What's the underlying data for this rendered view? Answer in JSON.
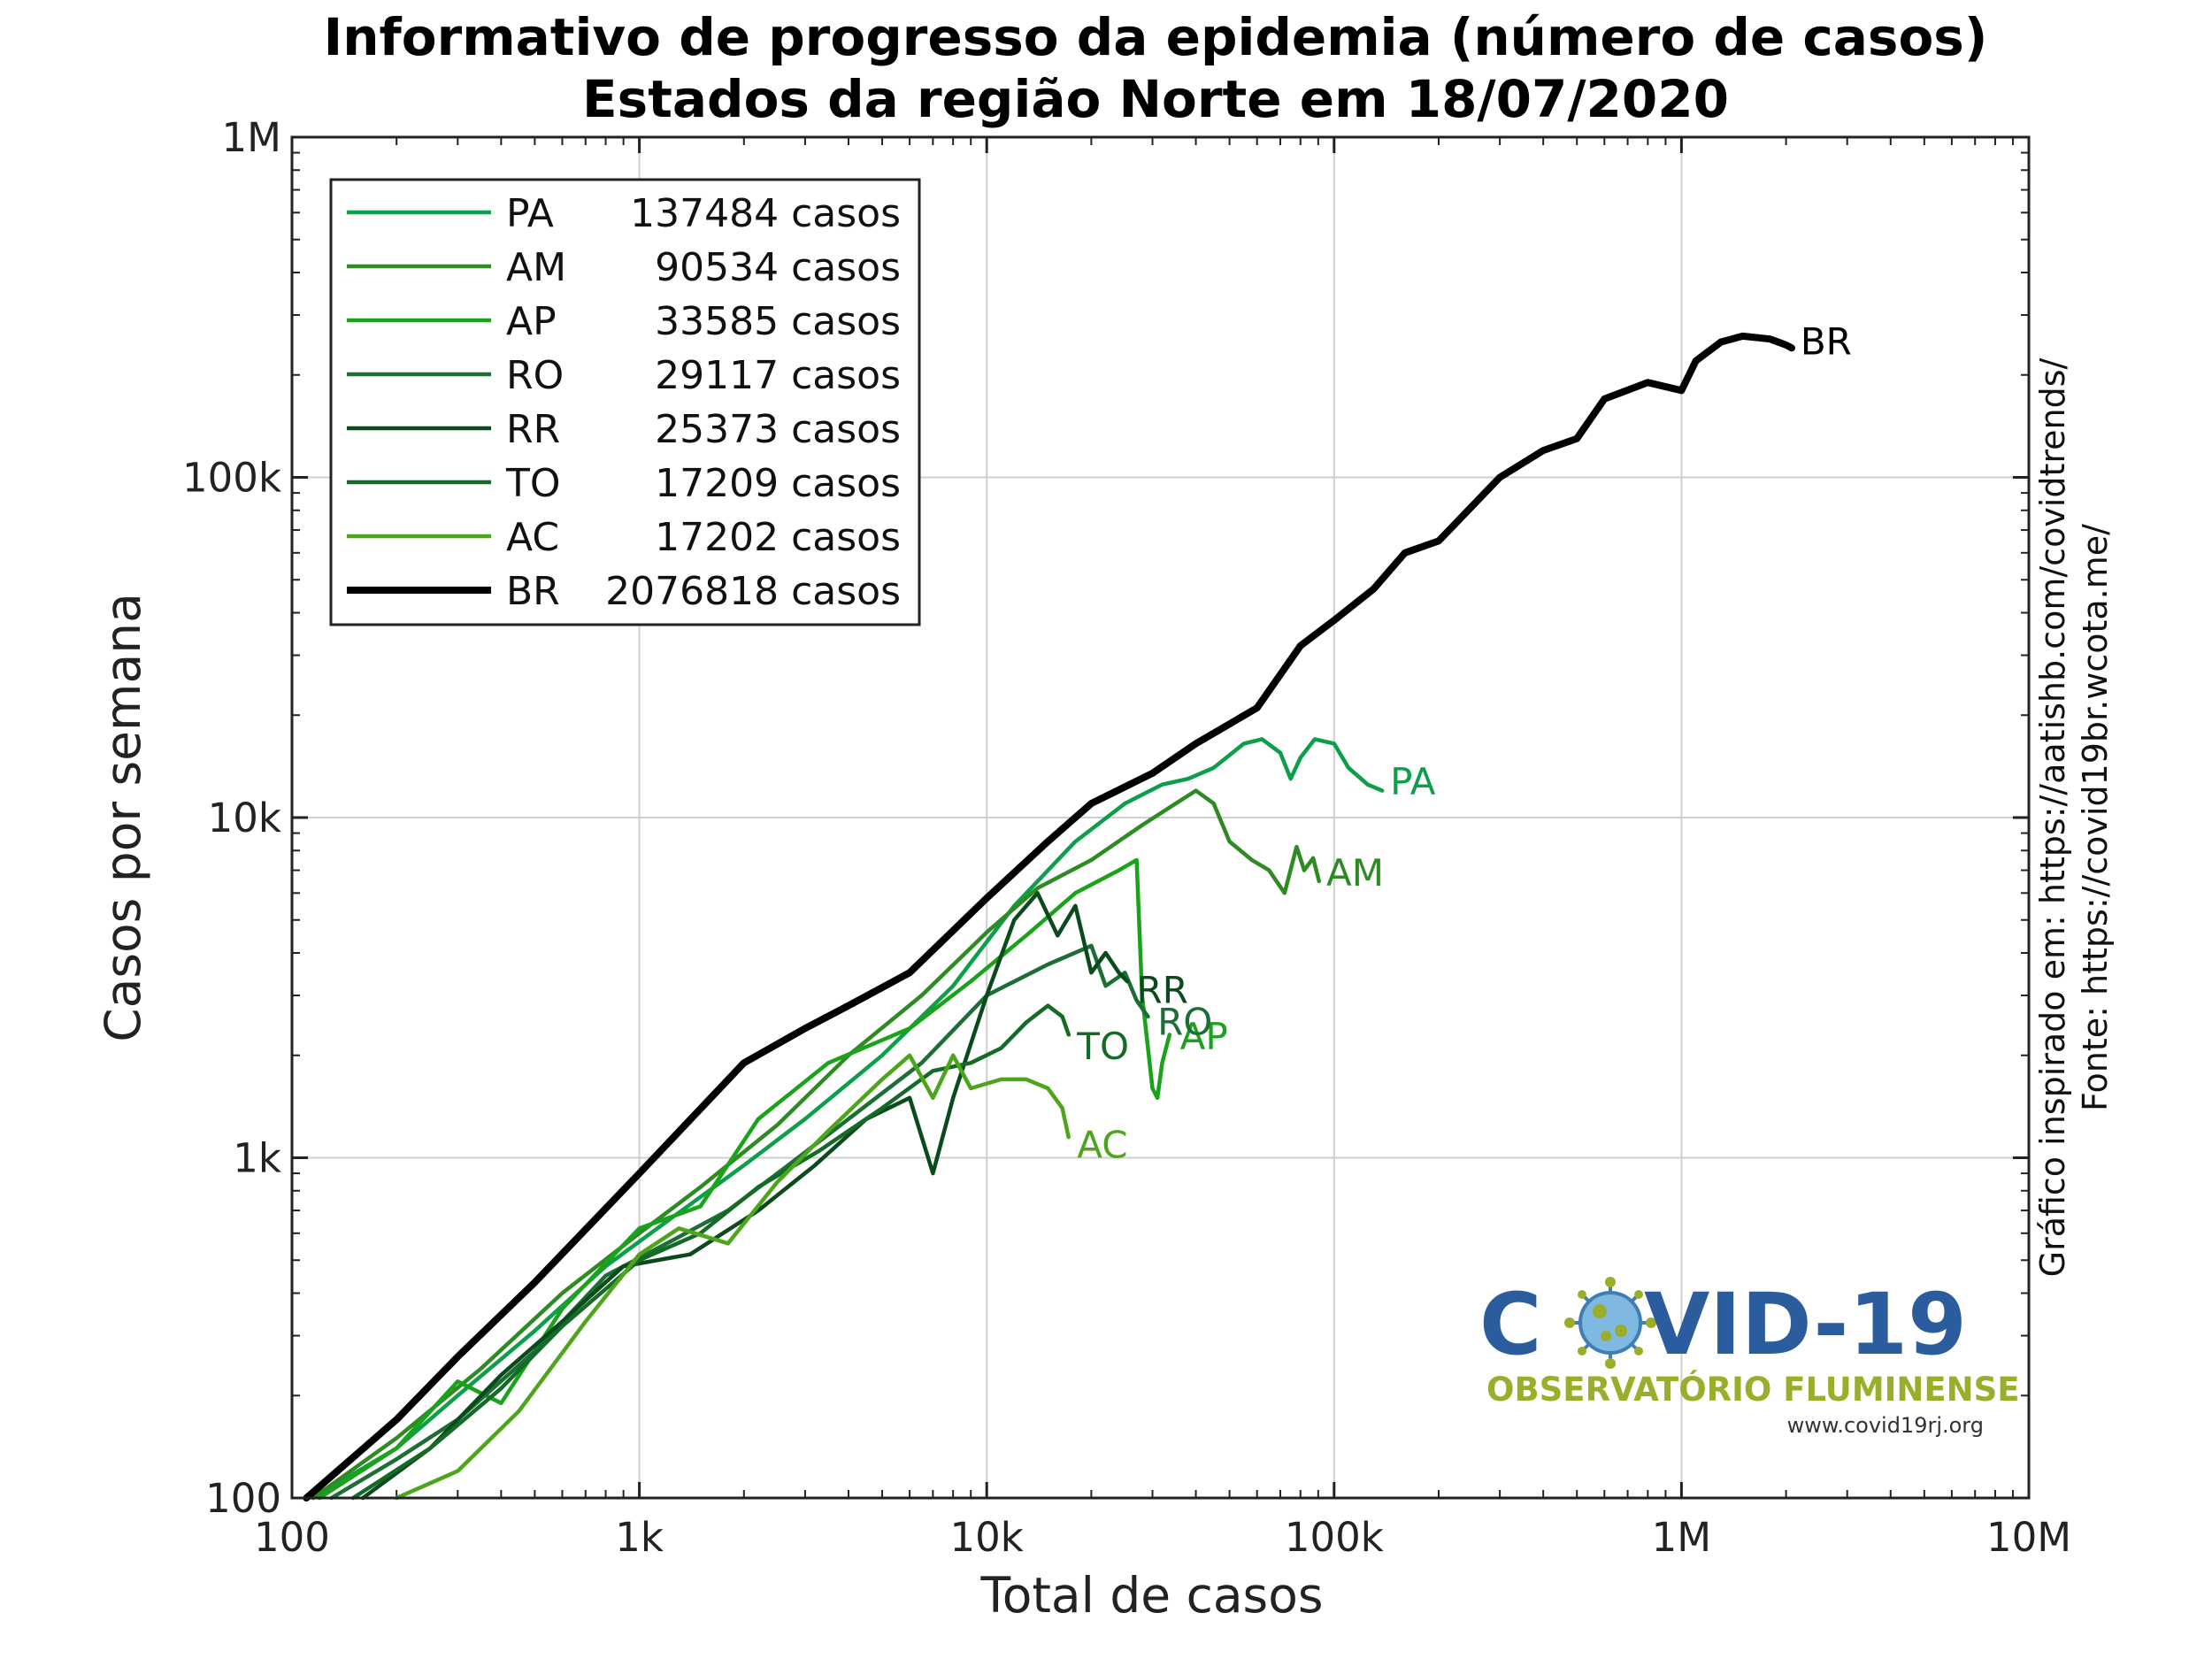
{
  "title_line1": "Informativo de progresso da epidemia (número de casos)",
  "title_line2": "Estados da região Norte em 18/07/2020",
  "side_text1": "Gráfico inspirado em: https://aatishb.com/covidtrends/",
  "side_text2": "Fonte: https://covid19br.wcota.me/",
  "logo": {
    "title_left": "C",
    "title_right": "VID-19",
    "subtitle": "OBSERVATÓRIO FLUMINENSE",
    "url": "www.covid19rj.org"
  },
  "chart_data": {
    "type": "line",
    "xlabel": "Total de casos",
    "ylabel": "Casos por semana",
    "xscale": "log",
    "yscale": "log",
    "xlim": [
      100,
      10000000
    ],
    "ylim": [
      100,
      1000000
    ],
    "xticks": [
      {
        "v": 100,
        "label": "100"
      },
      {
        "v": 1000,
        "label": "1k"
      },
      {
        "v": 10000,
        "label": "10k"
      },
      {
        "v": 100000,
        "label": "100k"
      },
      {
        "v": 1000000,
        "label": "1M"
      },
      {
        "v": 10000000,
        "label": "10M"
      }
    ],
    "yticks": [
      {
        "v": 100,
        "label": "100"
      },
      {
        "v": 1000,
        "label": "1k"
      },
      {
        "v": 10000,
        "label": "10k"
      },
      {
        "v": 100000,
        "label": "100k"
      },
      {
        "v": 1000000,
        "label": "1M"
      }
    ],
    "grid": true,
    "legend_position": "top-left",
    "series": [
      {
        "name": "PA",
        "total": "137484",
        "total_label": "casos",
        "color": "#0d9e4a",
        "width": 4.5,
        "points": [
          [
            115,
            100
          ],
          [
            200,
            140
          ],
          [
            300,
            200
          ],
          [
            500,
            310
          ],
          [
            800,
            480
          ],
          [
            1200,
            650
          ],
          [
            2000,
            950
          ],
          [
            3000,
            1300
          ],
          [
            5000,
            2000
          ],
          [
            8000,
            3200
          ],
          [
            12000,
            5500
          ],
          [
            18000,
            8500
          ],
          [
            25000,
            11000
          ],
          [
            32000,
            12500
          ],
          [
            38000,
            13000
          ],
          [
            45000,
            14000
          ],
          [
            55000,
            16500
          ],
          [
            62000,
            17000
          ],
          [
            70000,
            15500
          ],
          [
            75000,
            13000
          ],
          [
            80000,
            15000
          ],
          [
            88000,
            17000
          ],
          [
            100000,
            16500
          ],
          [
            110000,
            14000
          ],
          [
            125000,
            12500
          ],
          [
            137484,
            12000
          ]
        ]
      },
      {
        "name": "AM",
        "total": "90534",
        "total_label": "casos",
        "color": "#2e8b24",
        "width": 4.5,
        "points": [
          [
            115,
            100
          ],
          [
            200,
            150
          ],
          [
            350,
            240
          ],
          [
            600,
            400
          ],
          [
            1000,
            600
          ],
          [
            1500,
            820
          ],
          [
            2500,
            1250
          ],
          [
            4000,
            2000
          ],
          [
            6500,
            3000
          ],
          [
            10000,
            4600
          ],
          [
            14000,
            6200
          ],
          [
            20000,
            7500
          ],
          [
            28000,
            9500
          ],
          [
            35000,
            11000
          ],
          [
            40000,
            12000
          ],
          [
            45000,
            11000
          ],
          [
            50000,
            8500
          ],
          [
            58000,
            7500
          ],
          [
            65000,
            7000
          ],
          [
            72000,
            6000
          ],
          [
            78000,
            8200
          ],
          [
            82000,
            7000
          ],
          [
            87000,
            7600
          ],
          [
            90534,
            6500
          ]
        ]
      },
      {
        "name": "AP",
        "total": "33585",
        "total_label": "casos",
        "color": "#1aa31a",
        "width": 4.5,
        "points": [
          [
            120,
            100
          ],
          [
            200,
            140
          ],
          [
            300,
            220
          ],
          [
            400,
            190
          ],
          [
            600,
            360
          ],
          [
            1000,
            620
          ],
          [
            1500,
            720
          ],
          [
            2200,
            1300
          ],
          [
            3500,
            1900
          ],
          [
            6000,
            2400
          ],
          [
            9000,
            3300
          ],
          [
            13000,
            4500
          ],
          [
            18000,
            6000
          ],
          [
            24000,
            7000
          ],
          [
            27000,
            7500
          ],
          [
            28000,
            3000
          ],
          [
            30000,
            1600
          ],
          [
            31000,
            1500
          ],
          [
            32000,
            1900
          ],
          [
            33585,
            2300
          ]
        ]
      },
      {
        "name": "RO",
        "total": "29117",
        "total_label": "casos",
        "color": "#1c6e35",
        "width": 4.5,
        "points": [
          [
            130,
            100
          ],
          [
            200,
            130
          ],
          [
            300,
            170
          ],
          [
            500,
            270
          ],
          [
            800,
            450
          ],
          [
            1200,
            560
          ],
          [
            1800,
            700
          ],
          [
            2500,
            900
          ],
          [
            4000,
            1300
          ],
          [
            6500,
            1900
          ],
          [
            10000,
            3000
          ],
          [
            15000,
            3700
          ],
          [
            20000,
            4200
          ],
          [
            22000,
            3200
          ],
          [
            25000,
            3500
          ],
          [
            27000,
            2900
          ],
          [
            29117,
            2600
          ]
        ]
      },
      {
        "name": "RR",
        "total": "25373",
        "total_label": "casos",
        "color": "#0a4a1c",
        "width": 4.5,
        "points": [
          [
            160,
            100
          ],
          [
            250,
            140
          ],
          [
            400,
            230
          ],
          [
            600,
            330
          ],
          [
            900,
            480
          ],
          [
            1400,
            520
          ],
          [
            2200,
            700
          ],
          [
            3200,
            950
          ],
          [
            4500,
            1300
          ],
          [
            6000,
            1500
          ],
          [
            7000,
            900
          ],
          [
            8000,
            1500
          ],
          [
            10000,
            3000
          ],
          [
            12000,
            5000
          ],
          [
            14000,
            6000
          ],
          [
            16000,
            4500
          ],
          [
            18000,
            5500
          ],
          [
            20000,
            3500
          ],
          [
            22000,
            4000
          ],
          [
            24000,
            3500
          ],
          [
            25373,
            3300
          ]
        ]
      },
      {
        "name": "TO",
        "total": "17209",
        "total_label": "casos",
        "color": "#146b26",
        "width": 4.5,
        "points": [
          [
            150,
            100
          ],
          [
            250,
            140
          ],
          [
            400,
            210
          ],
          [
            600,
            320
          ],
          [
            1000,
            500
          ],
          [
            1500,
            600
          ],
          [
            2200,
            820
          ],
          [
            3300,
            1050
          ],
          [
            5000,
            1400
          ],
          [
            7000,
            1800
          ],
          [
            9000,
            1900
          ],
          [
            11000,
            2100
          ],
          [
            13000,
            2500
          ],
          [
            15000,
            2800
          ],
          [
            16500,
            2600
          ],
          [
            17209,
            2300
          ]
        ]
      },
      {
        "name": "AC",
        "total": "17202",
        "total_label": "casos",
        "color": "#4da51c",
        "width": 4.5,
        "points": [
          [
            200,
            100
          ],
          [
            300,
            120
          ],
          [
            450,
            180
          ],
          [
            700,
            330
          ],
          [
            1000,
            520
          ],
          [
            1300,
            620
          ],
          [
            1800,
            560
          ],
          [
            2500,
            850
          ],
          [
            3500,
            1200
          ],
          [
            5000,
            1700
          ],
          [
            6000,
            2000
          ],
          [
            7000,
            1500
          ],
          [
            8000,
            2000
          ],
          [
            9000,
            1600
          ],
          [
            11000,
            1700
          ],
          [
            13000,
            1700
          ],
          [
            15000,
            1600
          ],
          [
            16500,
            1400
          ],
          [
            17202,
            1150
          ]
        ]
      },
      {
        "name": "BR",
        "total": "2076818",
        "total_label": "casos",
        "color": "#000000",
        "width": 8,
        "points": [
          [
            110,
            100
          ],
          [
            200,
            170
          ],
          [
            300,
            260
          ],
          [
            500,
            430
          ],
          [
            1000,
            900
          ],
          [
            2000,
            1900
          ],
          [
            3000,
            2400
          ],
          [
            4000,
            2800
          ],
          [
            6000,
            3500
          ],
          [
            10000,
            5800
          ],
          [
            15000,
            8500
          ],
          [
            20000,
            11000
          ],
          [
            30000,
            13500
          ],
          [
            40000,
            16500
          ],
          [
            60000,
            21000
          ],
          [
            80000,
            32000
          ],
          [
            100000,
            38000
          ],
          [
            130000,
            47000
          ],
          [
            160000,
            60000
          ],
          [
            200000,
            65000
          ],
          [
            300000,
            100000
          ],
          [
            400000,
            120000
          ],
          [
            500000,
            130000
          ],
          [
            600000,
            170000
          ],
          [
            800000,
            190000
          ],
          [
            1000000,
            180000
          ],
          [
            1100000,
            220000
          ],
          [
            1300000,
            250000
          ],
          [
            1500000,
            260000
          ],
          [
            1800000,
            255000
          ],
          [
            2000000,
            245000
          ],
          [
            2076818,
            240000
          ]
        ]
      }
    ],
    "end_labels": [
      {
        "text": "PA",
        "x": 145000,
        "y": 11700,
        "color": "#0d9e4a"
      },
      {
        "text": "AM",
        "x": 95000,
        "y": 6300,
        "color": "#2e8b24"
      },
      {
        "text": "AP",
        "x": 36000,
        "y": 2080,
        "color": "#1aa31a"
      },
      {
        "text": "RO",
        "x": 31000,
        "y": 2300,
        "color": "#1c6e35"
      },
      {
        "text": "RR",
        "x": 27000,
        "y": 2850,
        "color": "#0a4a1c"
      },
      {
        "text": "TO",
        "x": 18200,
        "y": 1950,
        "color": "#146b26"
      },
      {
        "text": "AC",
        "x": 18200,
        "y": 1000,
        "color": "#4da51c"
      },
      {
        "text": "BR",
        "x": 2200000,
        "y": 230000,
        "color": "#000000"
      }
    ]
  }
}
